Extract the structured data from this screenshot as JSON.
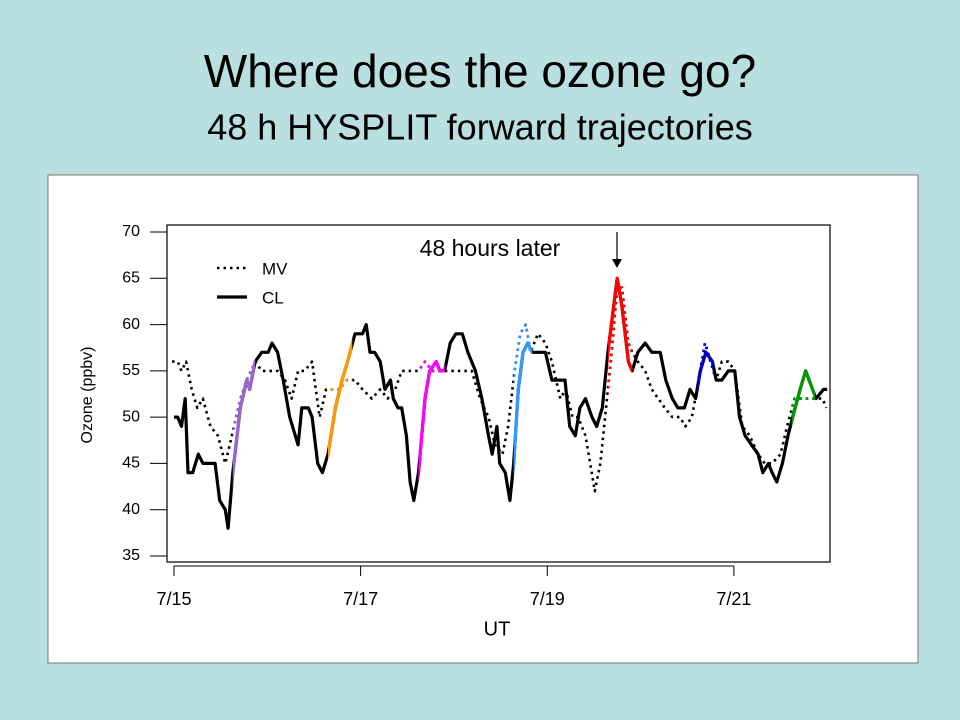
{
  "title": "Where does the ozone go?",
  "subtitle": "48 h HYSPLIT forward trajectories",
  "chart_data": {
    "type": "line",
    "annotation": "48 hours later",
    "xlabel": "UT",
    "ylabel": "Ozone (ppbv)",
    "xlim": [
      14.925,
      22.03
    ],
    "ylim": [
      35,
      70
    ],
    "xticks": [
      {
        "value": 15,
        "label": "7/15"
      },
      {
        "value": 17,
        "label": "7/17"
      },
      {
        "value": 19,
        "label": "7/19"
      },
      {
        "value": 21,
        "label": "7/21"
      }
    ],
    "yticks": [
      35,
      40,
      45,
      50,
      55,
      60,
      65,
      70
    ],
    "series": [
      {
        "name": "MV",
        "color": "#000000",
        "line_style": "dotted",
        "x": [
          14.98,
          15.04,
          15.08,
          15.13,
          15.19,
          15.25,
          15.31,
          15.39,
          15.47,
          15.55,
          15.62,
          15.71,
          15.78,
          15.87,
          15.94,
          16.03,
          16.11,
          16.19,
          16.26,
          16.33,
          16.4,
          16.48,
          16.52,
          16.56,
          16.63,
          16.69,
          16.78,
          16.85,
          16.94,
          17.02,
          17.12,
          17.21,
          17.29,
          17.37,
          17.44,
          17.53,
          17.62,
          17.69,
          17.77,
          17.85,
          17.96,
          18.04,
          18.12,
          18.19,
          18.28,
          18.37,
          18.44,
          18.52,
          18.58,
          18.65,
          18.71,
          18.77,
          18.82,
          18.9,
          18.98,
          19.05,
          19.14,
          19.2,
          19.27,
          19.33,
          19.41,
          19.46,
          19.51,
          19.57,
          19.62,
          19.69,
          19.75,
          19.8,
          19.87,
          19.91,
          19.97,
          20.05,
          20.12,
          20.19,
          20.26,
          20.34,
          20.42,
          20.48,
          20.55,
          20.64,
          20.69,
          20.75,
          20.81,
          20.87,
          20.94,
          21.01,
          21.09,
          21.17,
          21.26,
          21.33,
          21.41,
          21.5,
          21.57,
          21.65,
          21.71,
          21.8,
          21.87,
          21.95,
          21.99
        ],
        "values": [
          56,
          56,
          55,
          56,
          53,
          51,
          52,
          49,
          48,
          45,
          48,
          52,
          54,
          56,
          55,
          55,
          55,
          54,
          52,
          55,
          55,
          56,
          53,
          50,
          53,
          53,
          53,
          54,
          54,
          53,
          52,
          53,
          52,
          53,
          55,
          55,
          55,
          56,
          55,
          55,
          55,
          55,
          55,
          55,
          52,
          50,
          47,
          46,
          49,
          55,
          59,
          60,
          57,
          59,
          58,
          56,
          52,
          53,
          50,
          50,
          48,
          45,
          42,
          45,
          50,
          57,
          64,
          64,
          58,
          57,
          56,
          55,
          53,
          52,
          51,
          50,
          50,
          49,
          50,
          55,
          58,
          56,
          54,
          56,
          56,
          55,
          49,
          48,
          46,
          45,
          45,
          46,
          49,
          52,
          52,
          52,
          52,
          52,
          51
        ]
      },
      {
        "name": "CL",
        "color": "#000000",
        "line_style": "solid",
        "x": [
          15.0,
          15.04,
          15.08,
          15.12,
          15.15,
          15.2,
          15.26,
          15.31,
          15.44,
          15.49,
          15.55,
          15.58,
          15.63,
          15.71,
          15.78,
          15.81,
          15.87,
          15.94,
          16.01,
          16.05,
          16.11,
          16.17,
          16.24,
          16.3,
          16.33,
          16.37,
          16.44,
          16.48,
          16.54,
          16.59,
          16.65,
          16.73,
          16.8,
          16.86,
          16.94,
          17.02,
          17.06,
          17.1,
          17.15,
          17.21,
          17.26,
          17.32,
          17.35,
          17.4,
          17.44,
          17.49,
          17.53,
          17.57,
          17.62,
          17.69,
          17.74,
          17.81,
          17.85,
          17.9,
          17.96,
          18.02,
          18.09,
          18.15,
          18.23,
          18.3,
          18.37,
          18.41,
          18.46,
          18.49,
          18.55,
          18.6,
          18.64,
          18.69,
          18.74,
          18.79,
          18.84,
          18.92,
          18.98,
          19.05,
          19.19,
          19.24,
          19.3,
          19.35,
          19.41,
          19.48,
          19.53,
          19.59,
          19.65,
          19.75,
          19.8,
          19.87,
          19.91,
          19.97,
          20.05,
          20.12,
          20.21,
          20.27,
          20.34,
          20.4,
          20.47,
          20.53,
          20.59,
          20.64,
          20.7,
          20.77,
          20.81,
          20.87,
          20.94,
          21.01,
          21.06,
          21.12,
          21.19,
          21.26,
          21.31,
          21.37,
          21.41,
          21.46,
          21.52,
          21.58,
          21.63,
          21.71,
          21.77,
          21.88,
          21.96,
          22.0
        ],
        "values": [
          50,
          50,
          49,
          52,
          44,
          44,
          46,
          45,
          45,
          41,
          40,
          38,
          44,
          51,
          54,
          53,
          56,
          57,
          57,
          58,
          57,
          54,
          50,
          48,
          47,
          51,
          51,
          50,
          45,
          44,
          46,
          51,
          54,
          56,
          59,
          59,
          60,
          57,
          57,
          56,
          53,
          54,
          52,
          51,
          51,
          48,
          43,
          41,
          44,
          52,
          55,
          56,
          55,
          55,
          58,
          59,
          59,
          57,
          55,
          52,
          48,
          46,
          49,
          45,
          44,
          41,
          45,
          53,
          57,
          58,
          57,
          57,
          57,
          54,
          54,
          49,
          48,
          51,
          52,
          50,
          49,
          51,
          57,
          65,
          62,
          56,
          55,
          57,
          58,
          57,
          57,
          54,
          52,
          51,
          51,
          53,
          52,
          55,
          57,
          56,
          54,
          54,
          55,
          55,
          50,
          48,
          47,
          46,
          44,
          45,
          44,
          43,
          45,
          48,
          50,
          53,
          55,
          52,
          53,
          53
        ]
      }
    ],
    "highlights": [
      {
        "color": "#9966cc",
        "xlim": [
          15.63,
          15.87
        ]
      },
      {
        "color": "#ff9900",
        "xlim": [
          16.65,
          16.91
        ]
      },
      {
        "color": "#ff00ff",
        "xlim": [
          17.62,
          17.9
        ]
      },
      {
        "color": "#3399ff",
        "xlim": [
          18.64,
          18.84
        ]
      },
      {
        "color": "#ff0000",
        "xlim": [
          19.65,
          19.91
        ]
      },
      {
        "color": "#0000cc",
        "xlim": [
          20.61,
          20.78
        ]
      },
      {
        "color": "#009900",
        "xlim": [
          21.62,
          21.87
        ]
      }
    ]
  }
}
